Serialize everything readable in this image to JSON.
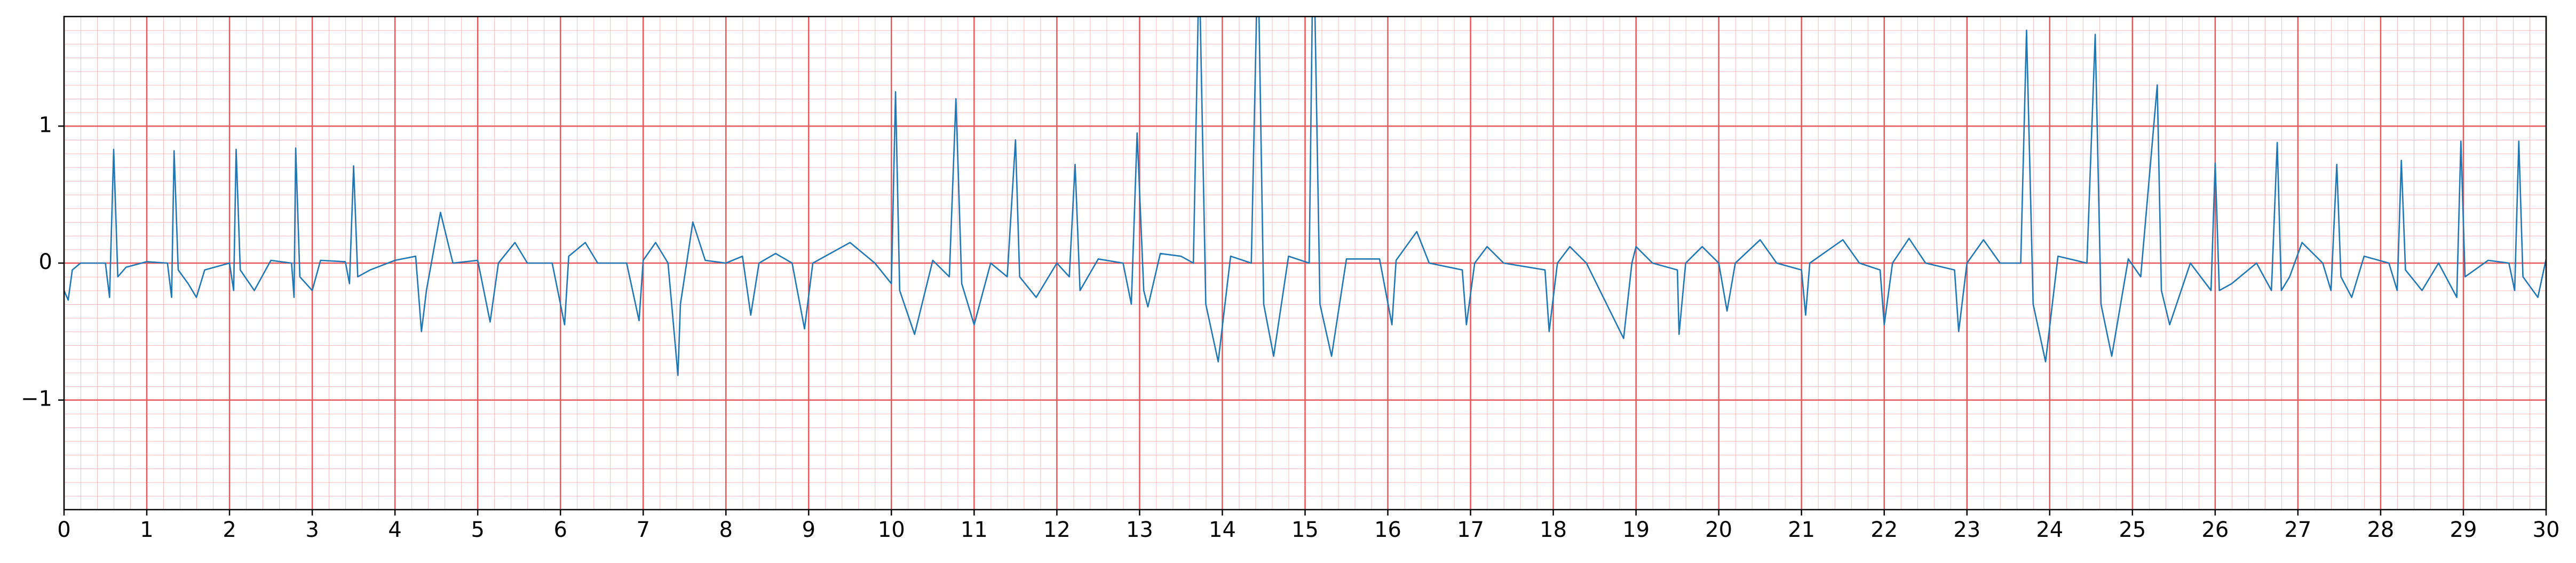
{
  "chart_data": {
    "type": "line",
    "color": "#1f77b4",
    "grid": true,
    "xlim": [
      0,
      30
    ],
    "ylim": [
      -1.8,
      1.8
    ],
    "xticks": [
      0,
      1,
      2,
      3,
      4,
      5,
      6,
      7,
      8,
      9,
      10,
      11,
      12,
      13,
      14,
      15,
      16,
      17,
      18,
      19,
      20,
      21,
      22,
      23,
      24,
      25,
      26,
      27,
      28,
      29,
      30
    ],
    "yticks": [
      {
        "value": -1,
        "label": "−1"
      },
      0,
      1
    ],
    "x": [
      0,
      0.05,
      0.1,
      0.2,
      0.5,
      0.55,
      0.6,
      0.65,
      0.75,
      1.0,
      1.25,
      1.3,
      1.33,
      1.38,
      1.5,
      1.6,
      1.7,
      2.0,
      2.05,
      2.08,
      2.13,
      2.3,
      2.5,
      2.75,
      2.78,
      2.8,
      2.85,
      3.0,
      3.1,
      3.4,
      3.45,
      3.5,
      3.55,
      3.7,
      4.0,
      4.25,
      4.32,
      4.38,
      4.55,
      4.7,
      5.0,
      5.15,
      5.25,
      5.45,
      5.6,
      5.9,
      6.05,
      6.1,
      6.3,
      6.45,
      6.8,
      6.95,
      7.0,
      7.15,
      7.3,
      7.42,
      7.45,
      7.6,
      7.75,
      8.0,
      8.2,
      8.3,
      8.4,
      8.6,
      8.8,
      8.95,
      9.05,
      9.5,
      9.8,
      10.0,
      10.05,
      10.1,
      10.28,
      10.5,
      10.7,
      10.78,
      10.85,
      11.0,
      11.2,
      11.4,
      11.5,
      11.55,
      11.75,
      12.0,
      12.15,
      12.22,
      12.28,
      12.5,
      12.8,
      12.9,
      12.97,
      13.05,
      13.1,
      13.25,
      13.5,
      13.65,
      13.72,
      13.8,
      13.95,
      14.1,
      14.35,
      14.43,
      14.5,
      14.62,
      14.8,
      15.05,
      15.1,
      15.18,
      15.32,
      15.5,
      15.9,
      16.05,
      16.1,
      16.35,
      16.5,
      16.9,
      16.95,
      17.05,
      17.2,
      17.4,
      17.9,
      17.95,
      18.05,
      18.2,
      18.4,
      18.85,
      18.95,
      19.0,
      19.2,
      19.5,
      19.52,
      19.6,
      19.8,
      20.0,
      20.1,
      20.2,
      20.5,
      20.7,
      21.0,
      21.05,
      21.1,
      21.5,
      21.7,
      21.95,
      22.0,
      22.1,
      22.3,
      22.5,
      22.85,
      22.9,
      23.0,
      23.2,
      23.4,
      23.65,
      23.72,
      23.8,
      23.95,
      24.1,
      24.45,
      24.55,
      24.62,
      24.75,
      24.95,
      25.1,
      25.3,
      25.35,
      25.45,
      25.7,
      25.95,
      26.0,
      26.05,
      26.2,
      26.5,
      26.68,
      26.75,
      26.8,
      26.9,
      27.05,
      27.3,
      27.4,
      27.47,
      27.52,
      27.65,
      27.8,
      28.1,
      28.2,
      28.25,
      28.3,
      28.5,
      28.7,
      28.92,
      28.97,
      29.02,
      29.3,
      29.55,
      29.62,
      29.67,
      29.72,
      29.9,
      30
    ],
    "values": [
      -0.2,
      -0.27,
      -0.05,
      0,
      0,
      -0.25,
      0.83,
      -0.1,
      -0.03,
      0.01,
      0,
      -0.25,
      0.82,
      -0.05,
      -0.15,
      -0.25,
      -0.05,
      0,
      -0.2,
      0.83,
      -0.05,
      -0.2,
      0.02,
      0,
      -0.25,
      0.84,
      -0.1,
      -0.2,
      0.02,
      0.01,
      -0.15,
      0.71,
      -0.1,
      -0.05,
      0.02,
      0.05,
      -0.5,
      -0.2,
      0.37,
      0,
      0.02,
      -0.43,
      0,
      0.15,
      0,
      0,
      -0.45,
      0.05,
      0.15,
      0,
      0,
      -0.42,
      0.02,
      0.15,
      0,
      -0.82,
      -0.3,
      0.3,
      0.02,
      0,
      0.05,
      -0.38,
      0,
      0.07,
      0,
      -0.48,
      0,
      0.15,
      0,
      -0.15,
      1.25,
      -0.2,
      -0.52,
      0.02,
      -0.1,
      1.2,
      -0.15,
      -0.45,
      0,
      -0.1,
      0.9,
      -0.1,
      -0.25,
      0,
      -0.1,
      0.72,
      -0.2,
      0.03,
      0,
      -0.3,
      0.95,
      -0.2,
      -0.32,
      0.07,
      0.05,
      0,
      2.2,
      -0.3,
      -0.72,
      0.05,
      0,
      2.3,
      -0.3,
      -0.68,
      0.05,
      0,
      2.5,
      -0.3,
      -0.68,
      0.03,
      0.03,
      -0.45,
      0.02,
      0.23,
      0,
      -0.05,
      -0.45,
      0,
      0.12,
      0,
      -0.05,
      -0.5,
      0,
      0.12,
      0,
      -0.55,
      0,
      0.12,
      0,
      -0.05,
      -0.52,
      0,
      0.12,
      0,
      -0.35,
      0,
      0.17,
      0,
      -0.05,
      -0.38,
      0,
      0.17,
      0,
      -0.05,
      -0.45,
      0,
      0.18,
      0,
      -0.05,
      -0.5,
      0,
      0.17,
      0,
      0,
      1.7,
      -0.3,
      -0.72,
      0.05,
      0,
      1.67,
      -0.3,
      -0.68,
      0.03,
      -0.1,
      1.3,
      -0.2,
      -0.45,
      0,
      -0.2,
      0.73,
      -0.2,
      -0.15,
      0,
      -0.2,
      0.88,
      -0.2,
      -0.1,
      0.15,
      0,
      -0.2,
      0.72,
      -0.1,
      -0.25,
      0.05,
      0,
      -0.2,
      0.75,
      -0.05,
      -0.2,
      0,
      -0.25,
      0.89,
      -0.1,
      0.02,
      0,
      -0.2,
      0.89,
      -0.1,
      -0.25,
      0.03
    ]
  }
}
